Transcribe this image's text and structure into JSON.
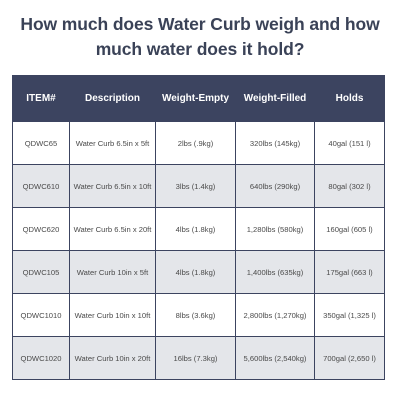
{
  "title_line1": "How much does Water Curb weigh and how",
  "title_line2": "much water does it hold?",
  "headers": [
    "ITEM#",
    "Description",
    "Weight-Empty",
    "Weight-Filled",
    "Holds"
  ],
  "rows": [
    [
      "QDWC65",
      "Water Curb 6.5in x 5ft",
      "2lbs (.9kg)",
      "320lbs (145kg)",
      "40gal (151 l)"
    ],
    [
      "QDWC610",
      "Water Curb 6.5in x 10ft",
      "3lbs (1.4kg)",
      "640lbs (290kg)",
      "80gal (302 l)"
    ],
    [
      "QDWC620",
      "Water Curb 6.5in x 20ft",
      "4lbs (1.8kg)",
      "1,280lbs (580kg)",
      "160gal (605 l)"
    ],
    [
      "QDWC105",
      "Water Curb 10in x 5ft",
      "4lbs (1.8kg)",
      "1,400lbs (635kg)",
      "175gal (663 l)"
    ],
    [
      "QDWC1010",
      "Water Curb 10in x 10ft",
      "8lbs (3.6kg)",
      "2,800lbs (1,270kg)",
      "350gal (1,325 l)"
    ],
    [
      "QDWC1020",
      "Water Curb 10in x 20ft",
      "16lbs (7.3kg)",
      "5,600lbs (2,540kg)",
      "700gal (2,650 l)"
    ]
  ],
  "colors": {
    "header_bg": "#3c4460",
    "title_text": "#3a4257",
    "alt_row_bg": "#e4e6ea"
  }
}
